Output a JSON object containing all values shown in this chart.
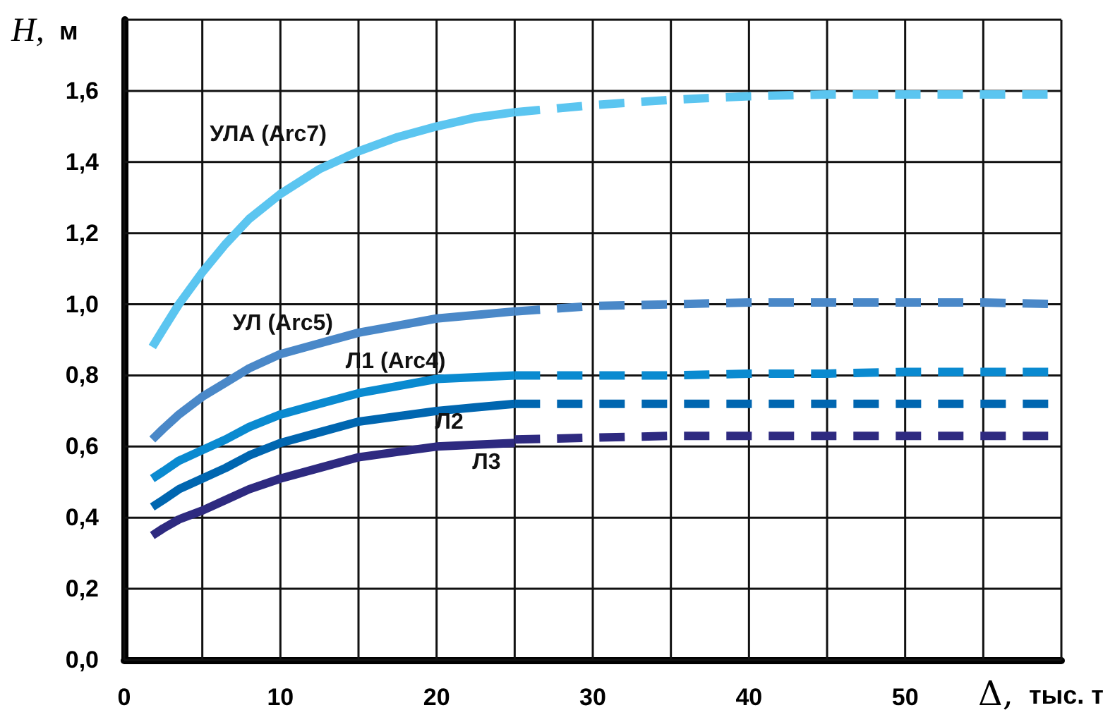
{
  "chart_data": {
    "type": "line",
    "xlabel": "Δ, тыс. т",
    "ylabel": "H, м",
    "xlim": [
      0,
      60
    ],
    "ylim": [
      0,
      1.8
    ],
    "xticks": [
      0,
      {
        "value": 5,
        "label": null
      },
      10,
      {
        "value": 15,
        "label": null
      },
      20,
      {
        "value": 25,
        "label": null
      },
      30,
      {
        "value": 35,
        "label": null
      },
      40,
      {
        "value": 45,
        "label": null
      },
      50,
      {
        "value": 55,
        "label": null
      },
      {
        "value": 60,
        "label": null
      }
    ],
    "yticks": [
      {
        "value": 0,
        "label": "0,0"
      },
      {
        "value": 0.2,
        "label": "0,2"
      },
      {
        "value": 0.4,
        "label": "0,4"
      },
      {
        "value": 0.6,
        "label": "0,6"
      },
      {
        "value": 0.8,
        "label": "0,8"
      },
      {
        "value": 1.0,
        "label": "1,0"
      },
      {
        "value": 1.2,
        "label": "1,2"
      },
      {
        "value": 1.4,
        "label": "1,4"
      },
      {
        "value": 1.6,
        "label": "1,6"
      },
      {
        "value": 1.8,
        "label": null
      }
    ],
    "grid": true,
    "marker": "none",
    "series": [
      {
        "name": "УЛА (Arc7)",
        "color": "#5bc5f0",
        "line_style": "solid",
        "x": [
          1.8,
          2.5,
          3.5,
          5,
          6.5,
          8,
          10,
          12.5,
          15,
          17.5,
          20,
          22.5,
          25
        ],
        "values": [
          0.88,
          0.93,
          1.0,
          1.09,
          1.17,
          1.24,
          1.31,
          1.38,
          1.43,
          1.47,
          1.5,
          1.525,
          1.54
        ]
      },
      {
        "color": "#5bc5f0",
        "line_style": "dashed",
        "x": [
          25,
          30,
          35,
          40,
          45,
          50,
          55,
          60
        ],
        "values": [
          1.54,
          1.56,
          1.575,
          1.585,
          1.59,
          1.59,
          1.59,
          1.59
        ]
      },
      {
        "name": "УЛ (Arc5)",
        "color": "#4a88c8",
        "line_style": "solid",
        "x": [
          1.8,
          2.5,
          3.5,
          5,
          6.5,
          8,
          10,
          12.5,
          15,
          17.5,
          20,
          22.5,
          25
        ],
        "values": [
          0.62,
          0.65,
          0.69,
          0.74,
          0.78,
          0.82,
          0.86,
          0.89,
          0.92,
          0.94,
          0.96,
          0.97,
          0.98
        ]
      },
      {
        "color": "#4a88c8",
        "line_style": "dashed",
        "x": [
          25,
          30,
          35,
          40,
          45,
          50,
          55,
          60
        ],
        "values": [
          0.98,
          0.995,
          1.0,
          1.005,
          1.005,
          1.005,
          1.005,
          1.0
        ]
      },
      {
        "name": "Л1 (Arc4)",
        "color": "#0a8ad0",
        "line_style": "solid",
        "x": [
          1.8,
          2.5,
          3.5,
          5,
          6.5,
          8,
          10,
          12.5,
          15,
          17.5,
          20,
          22.5,
          25
        ],
        "values": [
          0.51,
          0.53,
          0.56,
          0.59,
          0.62,
          0.655,
          0.69,
          0.72,
          0.75,
          0.77,
          0.79,
          0.795,
          0.8
        ]
      },
      {
        "color": "#0a8ad0",
        "line_style": "dashed",
        "x": [
          25,
          30,
          35,
          40,
          45,
          50,
          55,
          60
        ],
        "values": [
          0.8,
          0.8,
          0.8,
          0.805,
          0.805,
          0.81,
          0.81,
          0.81
        ]
      },
      {
        "name": "Л2",
        "color": "#0066b0",
        "line_style": "solid",
        "x": [
          1.8,
          2.5,
          3.5,
          5,
          6.5,
          8,
          10,
          12.5,
          15,
          17.5,
          20,
          22.5,
          25
        ],
        "values": [
          0.43,
          0.45,
          0.48,
          0.51,
          0.54,
          0.575,
          0.61,
          0.64,
          0.67,
          0.685,
          0.7,
          0.71,
          0.72
        ]
      },
      {
        "color": "#0066b0",
        "line_style": "dashed",
        "x": [
          25,
          30,
          35,
          40,
          45,
          50,
          55,
          60
        ],
        "values": [
          0.72,
          0.72,
          0.72,
          0.72,
          0.72,
          0.72,
          0.72,
          0.72
        ]
      },
      {
        "name": "Л3",
        "color": "#2e2a80",
        "line_style": "solid",
        "x": [
          1.8,
          2.5,
          3.5,
          5,
          6.5,
          8,
          10,
          12.5,
          15,
          17.5,
          20,
          22.5,
          25
        ],
        "values": [
          0.35,
          0.37,
          0.395,
          0.42,
          0.45,
          0.48,
          0.51,
          0.54,
          0.57,
          0.585,
          0.6,
          0.605,
          0.61
        ]
      },
      {
        "color": "#2e2a80",
        "line_style": "dashed",
        "x": [
          25,
          30,
          35,
          40,
          45,
          50,
          55,
          60
        ],
        "values": [
          0.62,
          0.625,
          0.63,
          0.63,
          0.63,
          0.63,
          0.63,
          0.63
        ]
      }
    ]
  }
}
